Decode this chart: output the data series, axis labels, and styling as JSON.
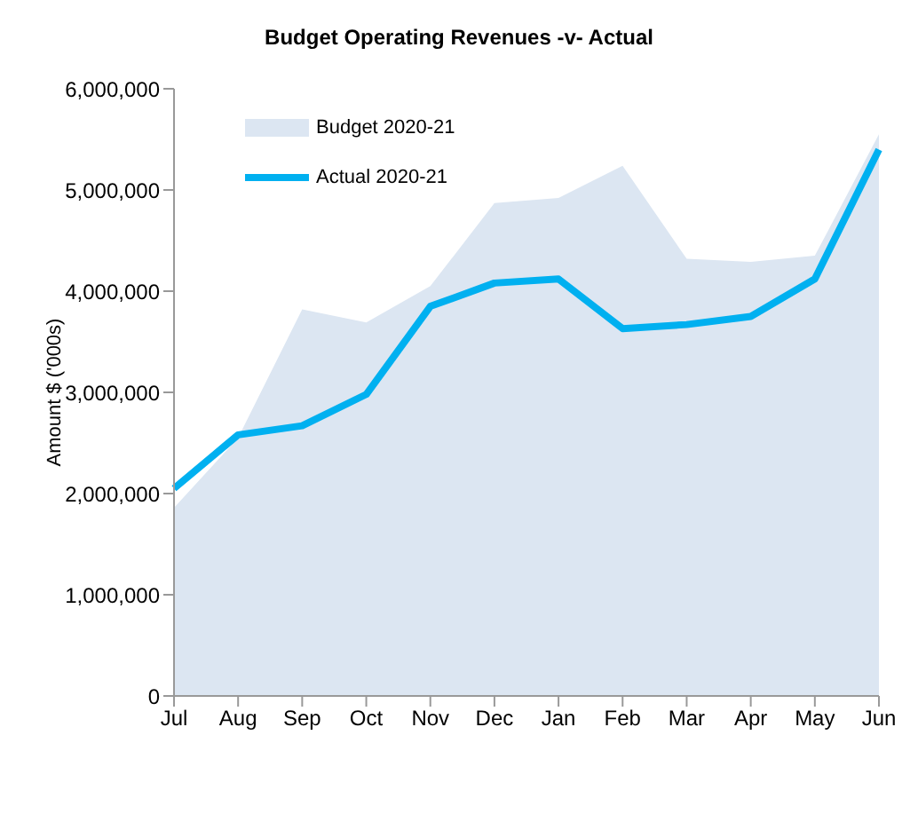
{
  "chart_data": {
    "type": "area",
    "title": "Budget Operating Revenues -v- Actual",
    "ylabel": "Amount $ ('000s)",
    "categories": [
      "Jul",
      "Aug",
      "Sep",
      "Oct",
      "Nov",
      "Dec",
      "Jan",
      "Feb",
      "Mar",
      "Apr",
      "May",
      "Jun"
    ],
    "series": [
      {
        "name": "Budget 2020-21",
        "color": "#dce6f2",
        "values": [
          1860000,
          2550000,
          3820000,
          3690000,
          4050000,
          4870000,
          4920000,
          5240000,
          4320000,
          4290000,
          4350000,
          5550000
        ]
      },
      {
        "name": "Actual 2020-21",
        "type": "line",
        "color": "#00b0f0",
        "values": [
          2050000,
          2580000,
          2670000,
          2980000,
          3850000,
          4080000,
          4120000,
          3630000,
          3670000,
          3750000,
          4120000,
          5400000
        ]
      }
    ],
    "ylim": [
      0,
      6000000
    ],
    "yticks": [
      0,
      {
        "value": 1000000,
        "label": "1,000,000"
      },
      {
        "value": 2000000,
        "label": "2,000,000"
      },
      {
        "value": 3000000,
        "label": "3,000,000"
      },
      {
        "value": 4000000,
        "label": "4,000,000"
      },
      {
        "value": 5000000,
        "label": "5,000,000"
      },
      {
        "value": 6000000,
        "label": "6,000,000"
      }
    ],
    "grid": false,
    "legend": "top left",
    "marker": "none",
    "line_style": "solid"
  }
}
